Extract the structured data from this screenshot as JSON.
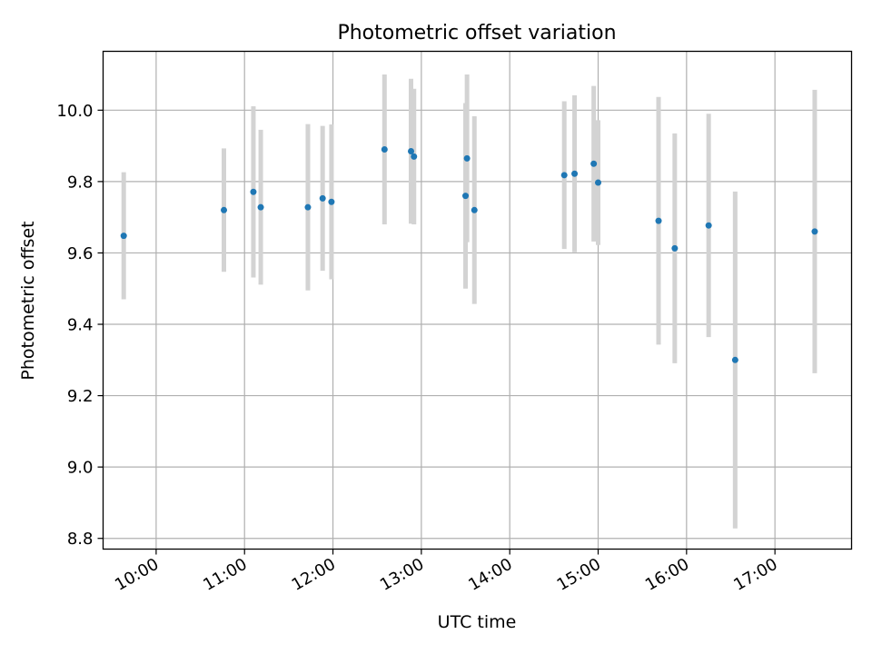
{
  "chart_data": {
    "type": "scatter",
    "title": "Photometric offset variation",
    "xlabel": "UTC time",
    "ylabel": "Photometric offset",
    "x_ticks": [
      "10:00",
      "11:00",
      "12:00",
      "13:00",
      "14:00",
      "15:00",
      "16:00",
      "17:00"
    ],
    "y_ticks": [
      "8.8",
      "9.0",
      "9.2",
      "9.4",
      "9.6",
      "9.8",
      "10.0"
    ],
    "xlim": [
      "09:24",
      "17:52"
    ],
    "ylim": [
      8.77,
      10.165
    ],
    "grid": true,
    "marker_color": "#1f77b4",
    "errorbar_color": "#d3d3d3",
    "points": [
      {
        "x": "09:38",
        "y": 9.648,
        "err": 0.178
      },
      {
        "x": "10:46",
        "y": 9.72,
        "err": 0.173
      },
      {
        "x": "11:06",
        "y": 9.771,
        "err": 0.24
      },
      {
        "x": "11:11",
        "y": 9.728,
        "err": 0.217
      },
      {
        "x": "11:43",
        "y": 9.728,
        "err": 0.233
      },
      {
        "x": "11:53",
        "y": 9.753,
        "err": 0.203
      },
      {
        "x": "11:59",
        "y": 9.743,
        "err": 0.217
      },
      {
        "x": "12:35",
        "y": 9.89,
        "err": 0.21
      },
      {
        "x": "12:53",
        "y": 9.885,
        "err": 0.203
      },
      {
        "x": "12:55",
        "y": 9.87,
        "err": 0.19
      },
      {
        "x": "13:30",
        "y": 9.76,
        "err": 0.26
      },
      {
        "x": "13:31",
        "y": 9.865,
        "err": 0.235
      },
      {
        "x": "13:36",
        "y": 9.72,
        "err": 0.263
      },
      {
        "x": "14:37",
        "y": 9.818,
        "err": 0.207
      },
      {
        "x": "14:44",
        "y": 9.822,
        "err": 0.22
      },
      {
        "x": "14:57",
        "y": 9.85,
        "err": 0.218
      },
      {
        "x": "15:00",
        "y": 9.797,
        "err": 0.175
      },
      {
        "x": "15:41",
        "y": 9.69,
        "err": 0.347
      },
      {
        "x": "15:52",
        "y": 9.613,
        "err": 0.322
      },
      {
        "x": "16:15",
        "y": 9.677,
        "err": 0.313
      },
      {
        "x": "16:33",
        "y": 9.3,
        "err": 0.472
      },
      {
        "x": "17:27",
        "y": 9.66,
        "err": 0.397
      }
    ]
  }
}
